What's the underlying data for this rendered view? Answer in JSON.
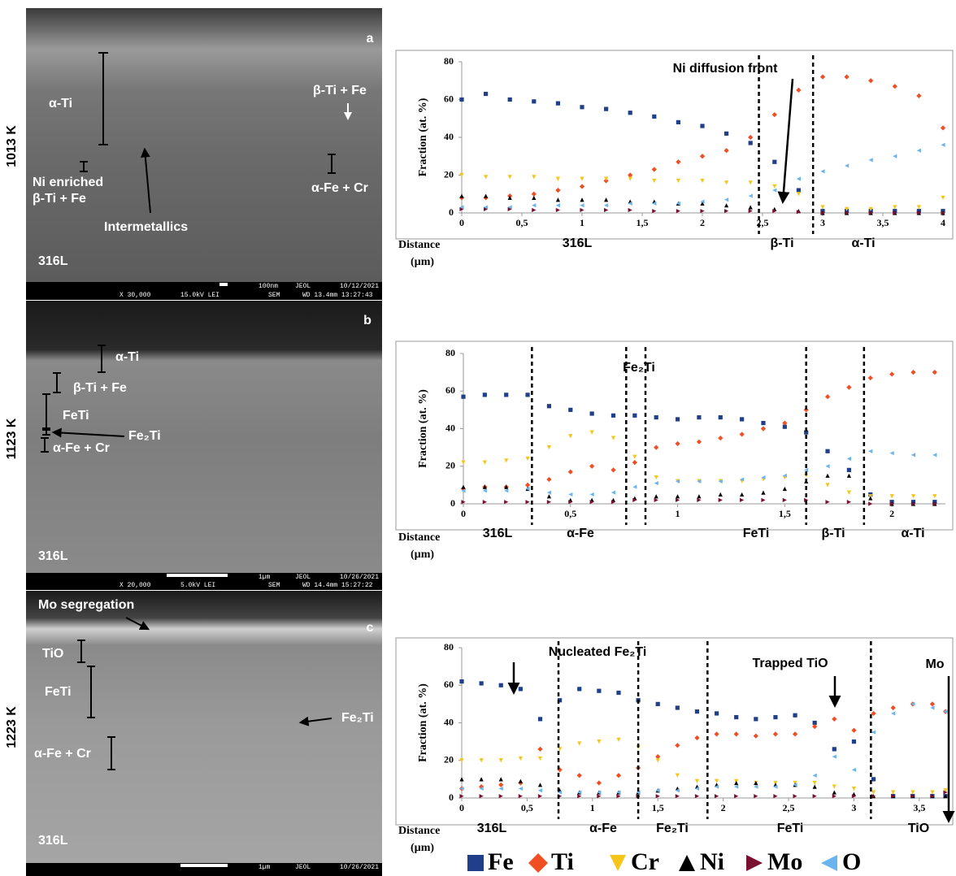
{
  "micrographs": [
    {
      "temperature": "1013 K",
      "panel": "a",
      "labels": [
        "α-Ti",
        "β-Ti + Fe",
        "Ni enriched",
        "β-Ti + Fe",
        "Intermetallics",
        "α-Fe + Cr",
        "316L"
      ],
      "info_bar": {
        "row1": [
          "100nm",
          "JEOL",
          "10/12/2021"
        ],
        "row2": [
          "X 30,000",
          "15.0kV LEI",
          "SEM",
          "WD 13.4mm 13:27:43"
        ]
      }
    },
    {
      "temperature": "1123 K",
      "panel": "b",
      "labels": [
        "α-Ti",
        "β-Ti + Fe",
        "FeTi",
        "Fe₂Ti",
        "α-Fe + Cr",
        "316L"
      ],
      "info_bar": {
        "row1": [
          "1µm",
          "JEOL",
          "10/26/2021"
        ],
        "row2": [
          "X 20,000",
          "5.0kV LEI",
          "SEM",
          "WD 14.4mm 15:27:22"
        ]
      }
    },
    {
      "temperature": "1223 K",
      "panel": "c",
      "labels": [
        "Mo segregation",
        "TiO",
        "FeTi",
        "Fe₂Ti",
        "α-Fe + Cr",
        "316L"
      ],
      "info_bar": {
        "row1": [
          "1µm",
          "JEOL",
          "10/26/2021"
        ]
      }
    }
  ],
  "chart_data": [
    {
      "type": "scatter",
      "ylabel": "Fraction (at. %)",
      "xlabel": [
        "Distance",
        "(µm)"
      ],
      "xlim": [
        0,
        4
      ],
      "ylim": [
        0,
        80
      ],
      "yticks": [
        0,
        20,
        40,
        60,
        80
      ],
      "xticks": [
        0,
        {
          "value": 0.5,
          "label": "0,5"
        },
        1,
        {
          "value": 1.5,
          "label": "1,5"
        },
        2,
        {
          "value": 2.5,
          "label": "2,5"
        },
        3,
        {
          "value": 3.5,
          "label": "3,5"
        },
        4
      ],
      "boundaries": [
        2.47,
        2.92
      ],
      "regions": [
        "316L",
        "β-Ti",
        "α-Ti"
      ],
      "annotations": [
        "Ni diffusion front"
      ],
      "x": [
        0,
        0.2,
        0.4,
        0.6,
        0.8,
        1,
        1.2,
        1.4,
        1.6,
        1.8,
        2,
        2.2,
        2.4,
        2.6,
        2.8,
        3,
        3.2,
        3.4,
        3.6,
        3.8,
        4
      ],
      "series": [
        {
          "name": "Fe",
          "color": "#1f3f8a",
          "marker": "square",
          "values": [
            60,
            63,
            60,
            59,
            58,
            56,
            55,
            53,
            51,
            48,
            46,
            42,
            37,
            27,
            12,
            1,
            1,
            1,
            1,
            1,
            1
          ]
        },
        {
          "name": "Ti",
          "color": "#f04e23",
          "marker": "diamond",
          "values": [
            8,
            8,
            9,
            10,
            12,
            14,
            17,
            20,
            23,
            27,
            30,
            33,
            40,
            52,
            65,
            72,
            72,
            70,
            67,
            62,
            45
          ]
        },
        {
          "name": "Cr",
          "color": "#f5c518",
          "marker": "tri-down",
          "values": [
            20,
            19,
            19,
            19,
            18,
            18,
            18,
            18,
            17,
            17,
            17,
            16,
            16,
            14,
            10,
            3,
            2,
            2,
            3,
            3,
            8
          ]
        },
        {
          "name": "Ni",
          "color": "#000000",
          "marker": "tri-up",
          "values": [
            9,
            9,
            8,
            8,
            7,
            7,
            7,
            6,
            6,
            5,
            5,
            4,
            3,
            2,
            1,
            0,
            0,
            0,
            0,
            0,
            0
          ]
        },
        {
          "name": "Mo",
          "color": "#7a1030",
          "marker": "tri-right",
          "values": [
            2,
            2,
            2,
            1.5,
            1.5,
            1.5,
            1.5,
            1.5,
            1,
            1,
            1,
            1,
            1,
            1,
            0.5,
            0,
            0,
            0,
            0,
            0,
            0
          ]
        },
        {
          "name": "O",
          "color": "#6cb4ee",
          "marker": "tri-left",
          "values": [
            3,
            3,
            3,
            4,
            4,
            4,
            4,
            5,
            5,
            5,
            6,
            7,
            9,
            12,
            18,
            22,
            25,
            28,
            30,
            33,
            36
          ]
        }
      ]
    },
    {
      "type": "scatter",
      "ylabel": "Fraction (at. %)",
      "xlabel": [
        "Distance",
        "(µm)"
      ],
      "xlim": [
        0,
        2.25
      ],
      "ylim": [
        0,
        80
      ],
      "yticks": [
        0,
        20,
        40,
        60,
        80
      ],
      "xticks": [
        0,
        {
          "value": 0.5,
          "label": "0,5"
        },
        1,
        {
          "value": 1.5,
          "label": "1,5"
        },
        2
      ],
      "boundaries": [
        0.32,
        0.76,
        0.85,
        1.6,
        1.87
      ],
      "regions": [
        "316L",
        "α-Fe",
        "FeTi",
        "β-Ti",
        "α-Ti"
      ],
      "annotations": [
        "Fe₂Ti"
      ],
      "x": [
        0,
        0.1,
        0.2,
        0.3,
        0.4,
        0.5,
        0.6,
        0.7,
        0.8,
        0.9,
        1,
        1.1,
        1.2,
        1.3,
        1.4,
        1.5,
        1.6,
        1.7,
        1.8,
        1.9,
        2,
        2.1,
        2.2
      ],
      "series": [
        {
          "name": "Fe",
          "color": "#1f3f8a",
          "marker": "square",
          "values": [
            57,
            58,
            58,
            58,
            52,
            50,
            48,
            47,
            47,
            46,
            45,
            46,
            46,
            45,
            43,
            41,
            38,
            28,
            18,
            5,
            1,
            1,
            1
          ]
        },
        {
          "name": "Ti",
          "color": "#f04e23",
          "marker": "diamond",
          "values": [
            8,
            9,
            9,
            10,
            13,
            17,
            20,
            18,
            22,
            30,
            32,
            33,
            35,
            37,
            40,
            43,
            50,
            57,
            62,
            67,
            69,
            70,
            70
          ]
        },
        {
          "name": "Cr",
          "color": "#f5c518",
          "marker": "tri-down",
          "values": [
            22,
            22,
            23,
            24,
            30,
            36,
            38,
            35,
            25,
            14,
            12,
            12,
            12,
            12,
            13,
            14,
            15,
            10,
            6,
            4,
            4,
            4,
            4
          ]
        },
        {
          "name": "Ni",
          "color": "#000000",
          "marker": "tri-up",
          "values": [
            9,
            9,
            9,
            8,
            4,
            2,
            2,
            2,
            3,
            4,
            4,
            4,
            5,
            5,
            6,
            8,
            12,
            15,
            15,
            3,
            0,
            0,
            0
          ]
        },
        {
          "name": "Mo",
          "color": "#7a1030",
          "marker": "tri-right",
          "values": [
            1,
            1,
            1,
            1,
            1,
            1,
            1,
            1,
            2,
            2,
            2,
            2,
            2,
            2,
            2,
            2,
            2,
            1,
            1,
            0,
            0,
            0,
            0
          ]
        },
        {
          "name": "O",
          "color": "#6cb4ee",
          "marker": "tri-left",
          "values": [
            7,
            7,
            7,
            8,
            6,
            5,
            5,
            6,
            9,
            11,
            12,
            12,
            12,
            13,
            14,
            15,
            18,
            20,
            24,
            28,
            27,
            26,
            26
          ]
        }
      ]
    },
    {
      "type": "scatter",
      "ylabel": "Fraction (at. %)",
      "xlabel": [
        "Distance",
        "(µm)"
      ],
      "xlim": [
        0,
        3.7
      ],
      "ylim": [
        0,
        80
      ],
      "yticks": [
        0,
        20,
        40,
        60,
        80
      ],
      "xticks": [
        0,
        {
          "value": 0.5,
          "label": "0,5"
        },
        1,
        {
          "value": 1.5,
          "label": "1,5"
        },
        2,
        {
          "value": 2.5,
          "label": "2,5"
        },
        3,
        {
          "value": 3.5,
          "label": "3,5"
        }
      ],
      "boundaries": [
        0.74,
        1.35,
        1.88,
        3.13
      ],
      "regions": [
        "316L",
        "α-Fe",
        "Fe₂Ti",
        "FeTi",
        "TiO"
      ],
      "annotations": [
        "Nucleated Fe₂Ti",
        "Trapped TiO",
        "Mo"
      ],
      "x": [
        0,
        0.15,
        0.3,
        0.45,
        0.6,
        0.75,
        0.9,
        1.05,
        1.2,
        1.35,
        1.5,
        1.65,
        1.8,
        1.95,
        2.1,
        2.25,
        2.4,
        2.55,
        2.7,
        2.85,
        3,
        3.15,
        3.3,
        3.45,
        3.6,
        3.7
      ],
      "series": [
        {
          "name": "Fe",
          "color": "#1f3f8a",
          "marker": "square",
          "values": [
            62,
            61,
            60,
            58,
            42,
            52,
            58,
            57,
            56,
            52,
            50,
            48,
            46,
            45,
            43,
            42,
            43,
            44,
            40,
            26,
            30,
            10,
            1,
            1,
            1,
            1
          ]
        },
        {
          "name": "Ti",
          "color": "#f04e23",
          "marker": "diamond",
          "values": [
            5,
            6,
            7,
            8,
            26,
            15,
            12,
            8,
            12,
            16,
            22,
            28,
            32,
            34,
            34,
            33,
            34,
            34,
            38,
            42,
            36,
            45,
            48,
            50,
            50,
            46
          ]
        },
        {
          "name": "Cr",
          "color": "#f5c518",
          "marker": "tri-down",
          "values": [
            20,
            20,
            20,
            21,
            21,
            26,
            29,
            30,
            31,
            27,
            20,
            12,
            9,
            9,
            9,
            8,
            8,
            8,
            8,
            6,
            5,
            3,
            3,
            3,
            3,
            4
          ]
        },
        {
          "name": "Ni",
          "color": "#000000",
          "marker": "tri-up",
          "values": [
            10,
            10,
            10,
            9,
            7,
            4,
            3,
            3,
            3,
            3,
            4,
            5,
            6,
            7,
            8,
            8,
            7,
            7,
            6,
            3,
            2,
            1,
            1,
            1,
            1,
            1
          ]
        },
        {
          "name": "Mo",
          "color": "#7a1030",
          "marker": "tri-right",
          "values": [
            1,
            1,
            1,
            1,
            1,
            1,
            1,
            1,
            1,
            1,
            1,
            1,
            1,
            1,
            1,
            1,
            1,
            1,
            1,
            1,
            1,
            1,
            1,
            1,
            1,
            3
          ]
        },
        {
          "name": "O",
          "color": "#6cb4ee",
          "marker": "tri-left",
          "values": [
            5,
            5,
            5,
            5,
            4,
            3,
            3,
            3,
            3,
            3,
            4,
            4,
            5,
            6,
            6,
            6,
            6,
            7,
            12,
            22,
            15,
            35,
            45,
            50,
            48,
            46
          ]
        }
      ]
    }
  ]
}
